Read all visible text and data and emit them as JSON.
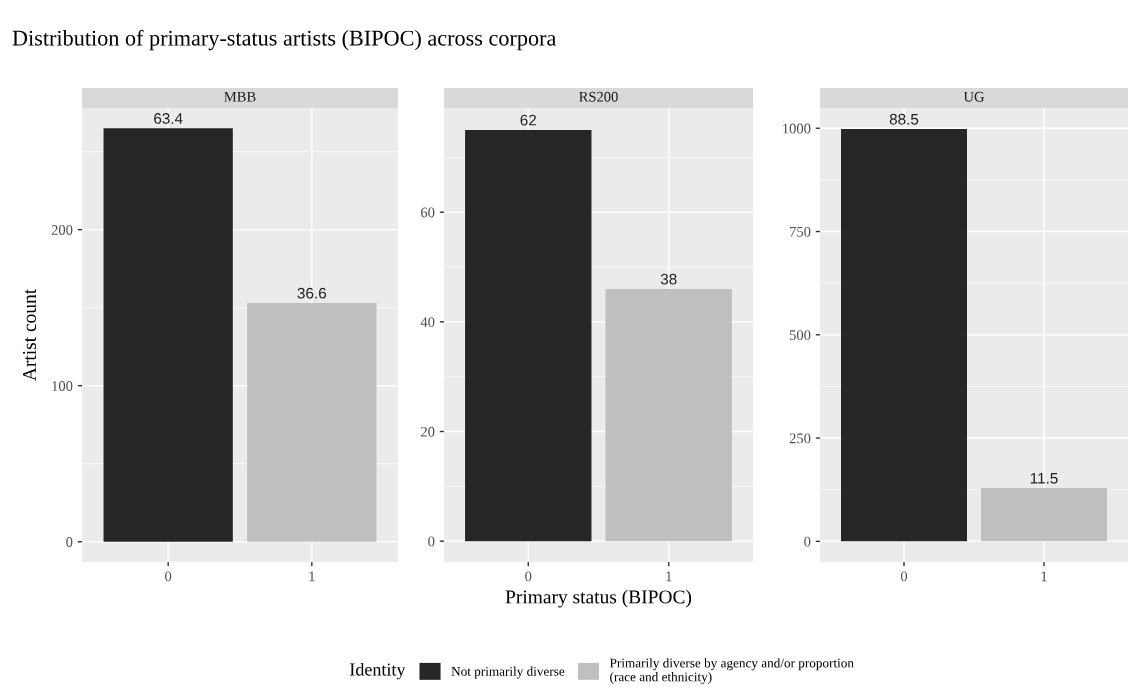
{
  "chart_data": [
    {
      "type": "bar",
      "title": "MBB",
      "ylabel": "Artist count",
      "categories": [
        "0",
        "1"
      ],
      "annotations": [
        "Distribution of primary-status artists (BIPOC) across corpora",
        {
          "text": "63.4",
          "x": "0",
          "y": 265
        },
        {
          "text": "36.6",
          "x": "1",
          "y": 153
        }
      ],
      "series": [
        {
          "color": "#262626",
          "values": [
            265,
            null
          ]
        },
        {
          "color": "#bfbfbf",
          "values": [
            null,
            153
          ]
        }
      ],
      "ylim": [
        -13,
        278
      ],
      "yticks": [
        0,
        100,
        200
      ],
      "grid": true
    },
    {
      "type": "bar",
      "title": "RS200",
      "xlabel": "Primary status (BIPOC)",
      "categories": [
        "0",
        "1"
      ],
      "legend": "bottom",
      "legend_title": "Identity",
      "annotations": [
        {
          "text": "62",
          "x": "0",
          "y": 75
        },
        {
          "text": "38",
          "x": "1",
          "y": 46
        }
      ],
      "series": [
        {
          "name": "Not primarily diverse",
          "color": "#262626",
          "values": [
            75,
            null
          ]
        },
        {
          "name": "Primarily diverse by agency and/or proportion\n(race and ethnicity)",
          "color": "#bfbfbf",
          "values": [
            null,
            46
          ]
        }
      ],
      "ylim": [
        -3.8,
        79
      ],
      "yticks": [
        0,
        20,
        40,
        60
      ],
      "grid": true
    },
    {
      "type": "bar",
      "title": "UG",
      "categories": [
        "0",
        "1"
      ],
      "annotations": [
        {
          "text": "88.5",
          "x": "0",
          "y": 998
        },
        {
          "text": "11.5",
          "x": "1",
          "y": 129
        }
      ],
      "series": [
        {
          "color": "#262626",
          "values": [
            998,
            null
          ]
        },
        {
          "color": "#bfbfbf",
          "values": [
            null,
            129
          ]
        }
      ],
      "ylim": [
        -50,
        1049
      ],
      "yticks": [
        0,
        250,
        500,
        750,
        1000
      ],
      "grid": true
    }
  ]
}
